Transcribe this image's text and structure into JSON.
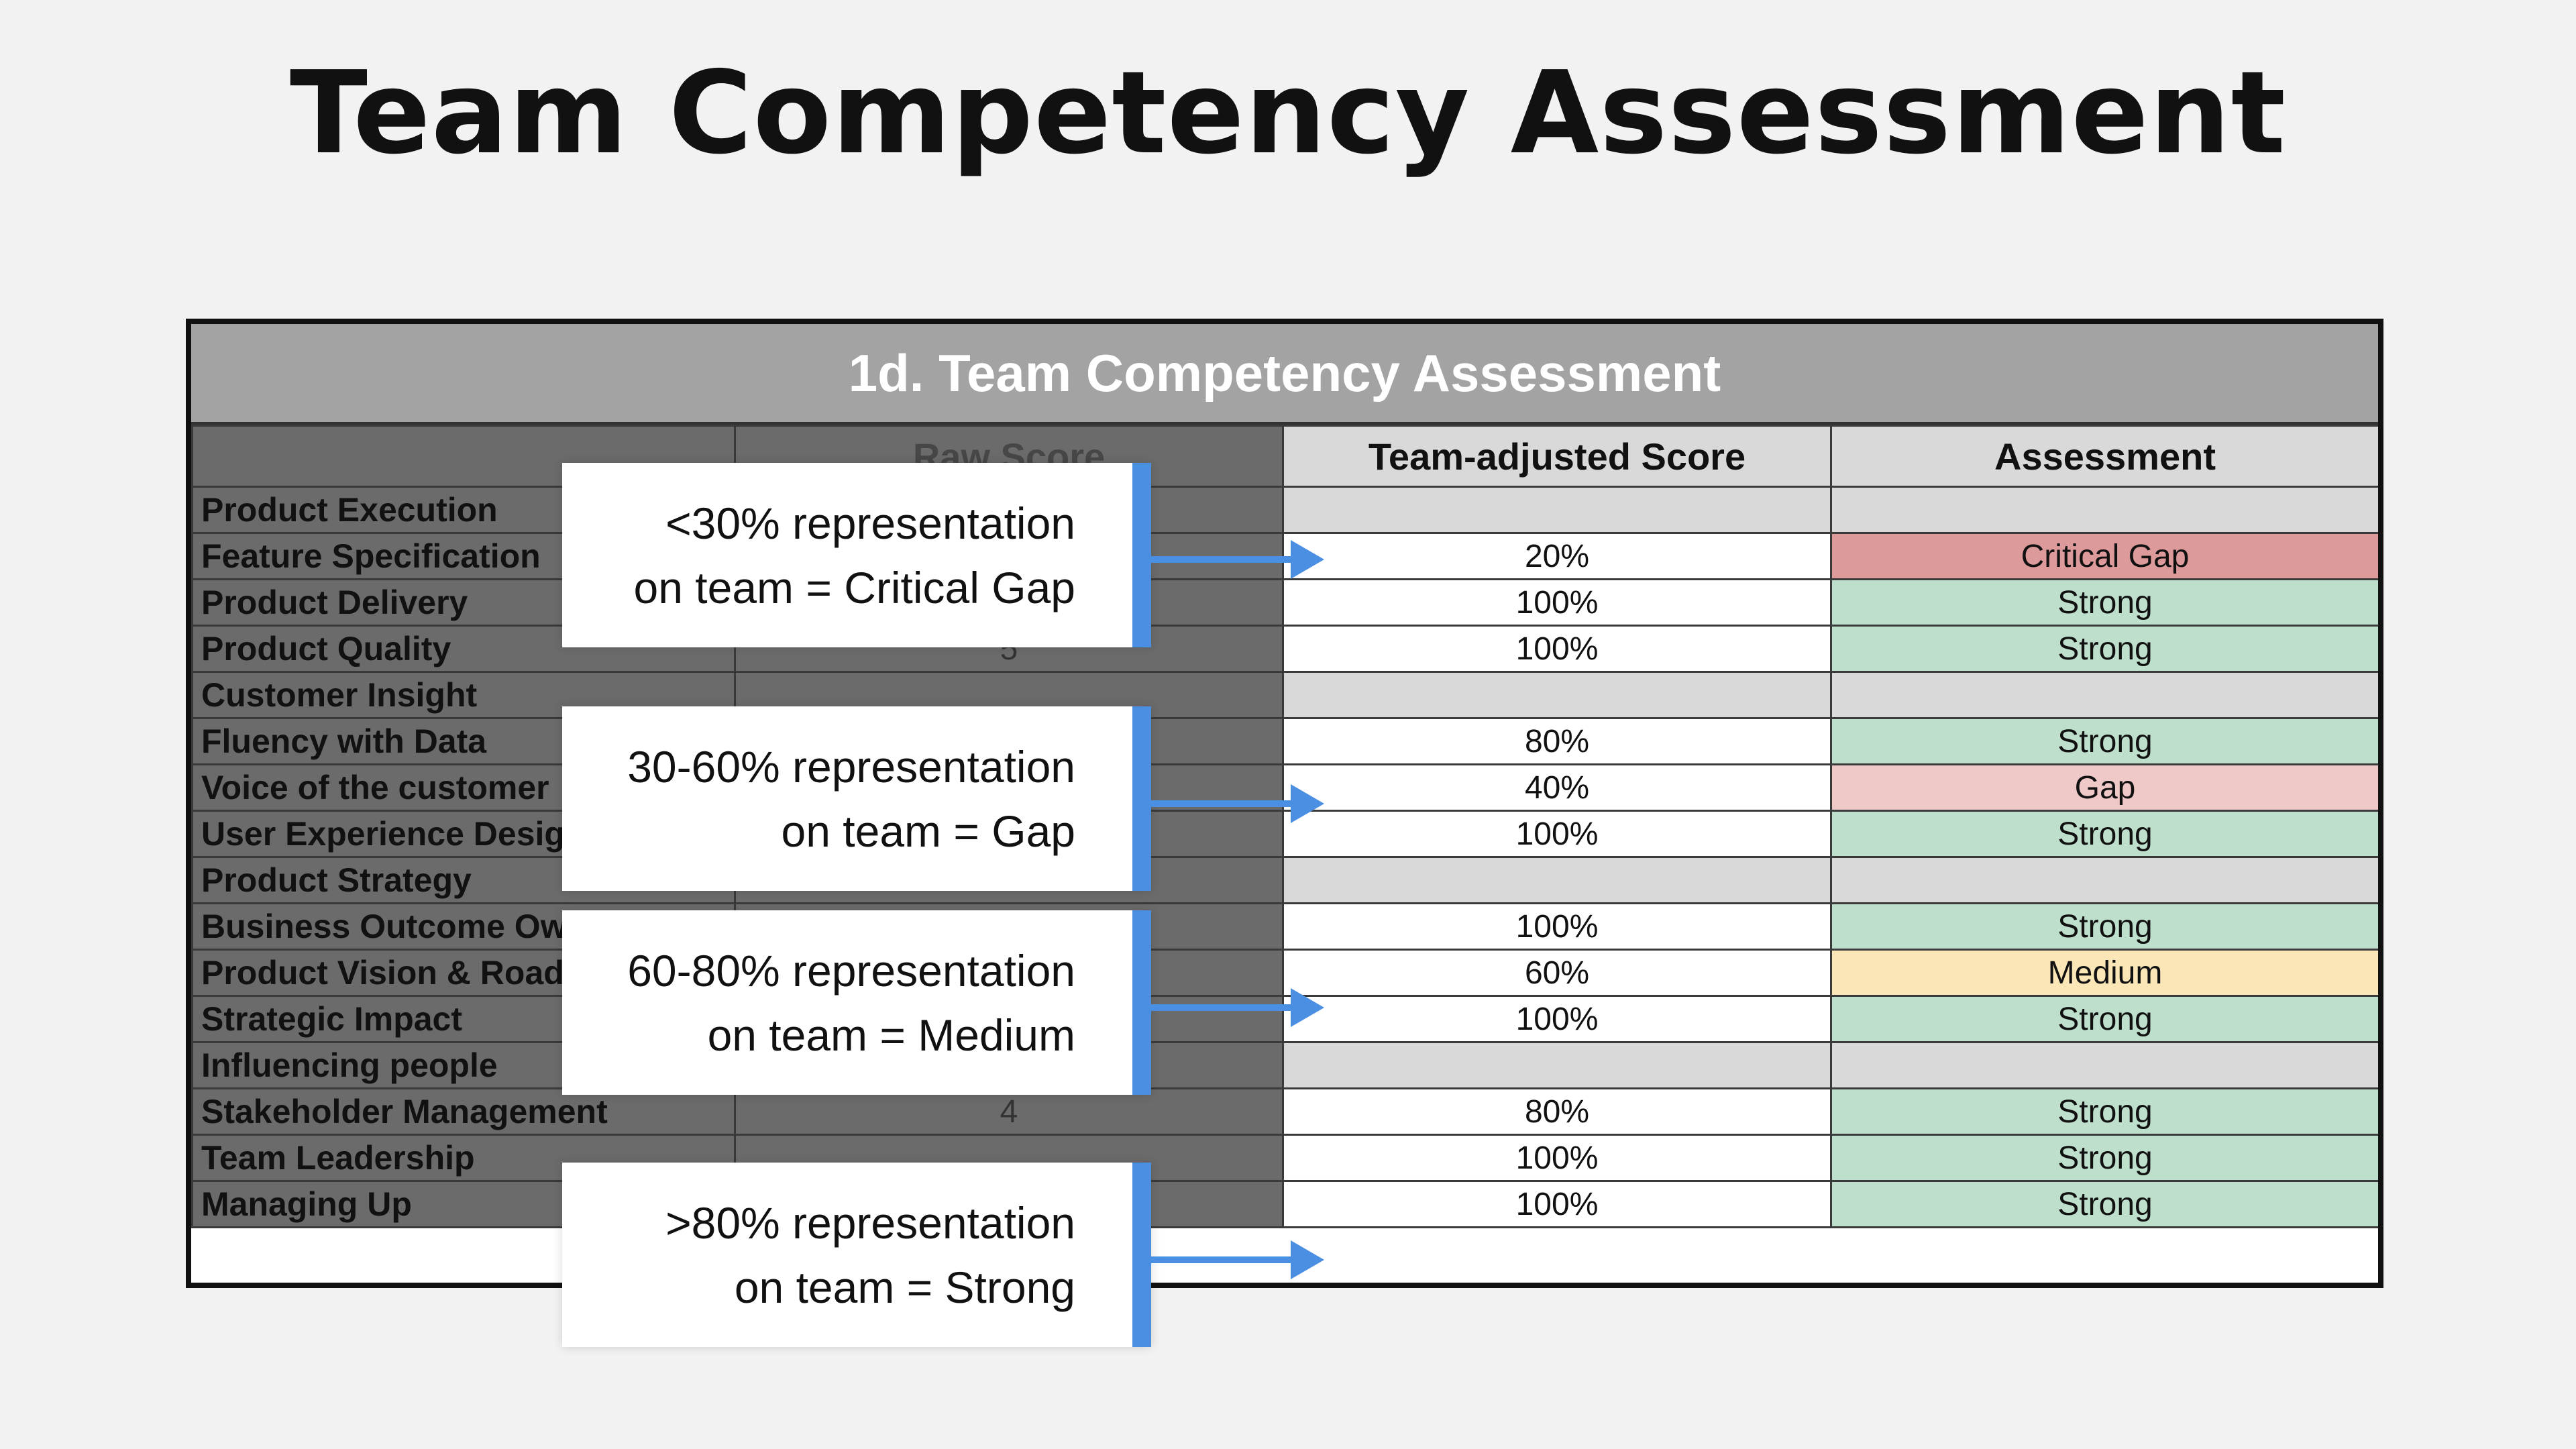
{
  "title": "Team Competency Assessment",
  "sheet": {
    "title": "1d. Team Competency Assessment",
    "headers": [
      "",
      "Raw Score",
      "Team-adjusted Score",
      "Assessment"
    ],
    "rows": [
      {
        "label": "Product Execution",
        "category": true
      },
      {
        "label": "Feature Specification",
        "raw": "",
        "score": "20%",
        "assessment": "Critical Gap",
        "level": "critical"
      },
      {
        "label": "Product Delivery",
        "raw": "",
        "score": "100%",
        "assessment": "Strong",
        "level": "strong"
      },
      {
        "label": "Product Quality",
        "raw": "5",
        "score": "100%",
        "assessment": "Strong",
        "level": "strong"
      },
      {
        "label": "Customer Insight",
        "category": true
      },
      {
        "label": "Fluency with Data",
        "raw": "",
        "score": "80%",
        "assessment": "Strong",
        "level": "strong"
      },
      {
        "label": "Voice of the customer",
        "raw": "",
        "score": "40%",
        "assessment": "Gap",
        "level": "gap"
      },
      {
        "label": "User Experience Design",
        "raw": "",
        "score": "100%",
        "assessment": "Strong",
        "level": "strong"
      },
      {
        "label": "Product Strategy",
        "category": true
      },
      {
        "label": "Business Outcome Ownership",
        "raw": "",
        "score": "100%",
        "assessment": "Strong",
        "level": "strong"
      },
      {
        "label": "Product Vision & Roadmapping",
        "raw": "",
        "score": "60%",
        "assessment": "Medium",
        "level": "medium"
      },
      {
        "label": "Strategic Impact",
        "raw": "",
        "score": "100%",
        "assessment": "Strong",
        "level": "strong"
      },
      {
        "label": "Influencing people",
        "category": true
      },
      {
        "label": "Stakeholder Management",
        "raw": "4",
        "score": "80%",
        "assessment": "Strong",
        "level": "strong"
      },
      {
        "label": "Team Leadership",
        "raw": "",
        "score": "100%",
        "assessment": "Strong",
        "level": "strong"
      },
      {
        "label": "Managing Up",
        "raw": "",
        "score": "100%",
        "assessment": "Strong",
        "level": "strong"
      }
    ]
  },
  "callouts": [
    {
      "line1": "<30% representation",
      "line2": "on team = Critical Gap"
    },
    {
      "line1": "30-60% representation",
      "line2": "on team = Gap"
    },
    {
      "line1": "60-80% representation",
      "line2": "on team = Medium"
    },
    {
      "line1": ">80% representation",
      "line2": "on team = Strong"
    }
  ],
  "colors": {
    "accent": "#4a8fe2",
    "critical": "#dd9a9a",
    "gap": "#efc8c8",
    "medium": "#fae6b6",
    "strong": "#bfdfcd"
  }
}
